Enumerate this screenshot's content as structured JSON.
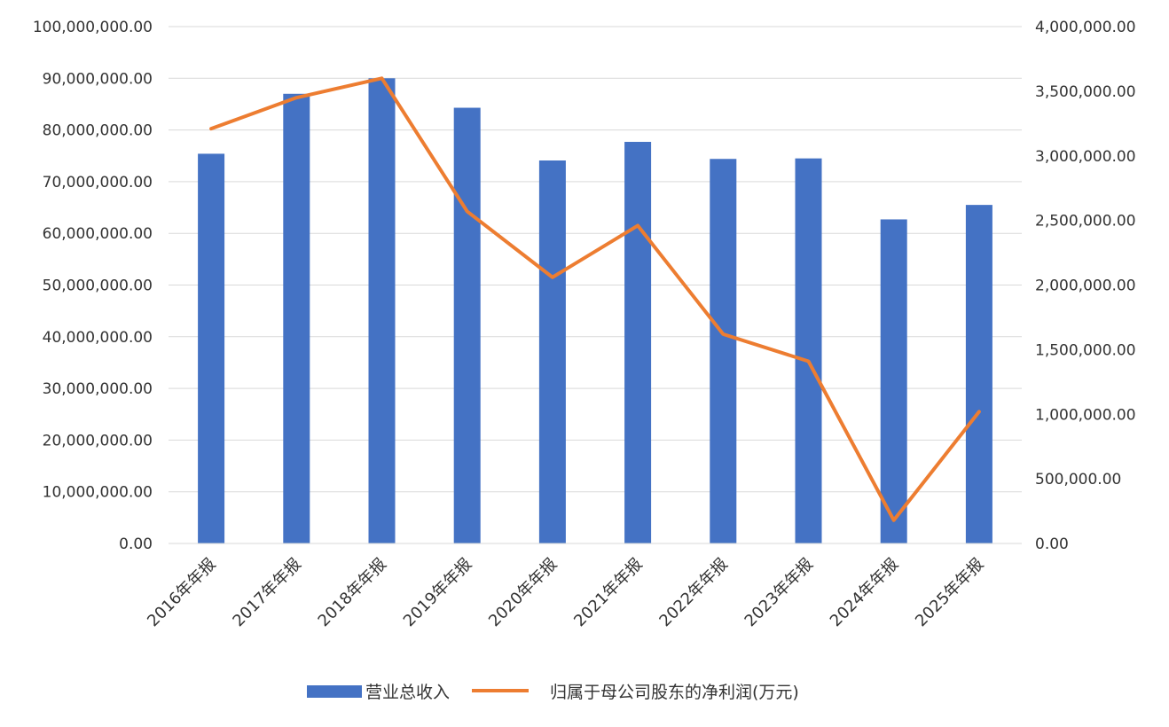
{
  "chart_data": {
    "type": "bar",
    "categories": [
      "2016年年报",
      "2017年年报",
      "2018年年报",
      "2019年年报",
      "2020年年报",
      "2021年年报",
      "2022年年报",
      "2023年年报",
      "2024年年报",
      "2025年年报"
    ],
    "series": [
      {
        "name": "营业总收入",
        "type": "bar",
        "axis": "left",
        "color": "#4472C4",
        "values": [
          75400000,
          87000000,
          90000000,
          84300000,
          74100000,
          77700000,
          74400000,
          74500000,
          62700000,
          65500000
        ]
      },
      {
        "name": "归属于母公司股东的净利润(万元)",
        "type": "line",
        "axis": "right",
        "color": "#ED7D31",
        "values": [
          3210000,
          3450000,
          3600000,
          2570000,
          2060000,
          2460000,
          1620000,
          1410000,
          180000,
          1020000
        ]
      }
    ],
    "y_left": {
      "min": 0,
      "max": 100000000,
      "ticks": [
        "0.00",
        "10,000,000.00",
        "20,000,000.00",
        "30,000,000.00",
        "40,000,000.00",
        "50,000,000.00",
        "60,000,000.00",
        "70,000,000.00",
        "80,000,000.00",
        "90,000,000.00",
        "100,000,000.00"
      ]
    },
    "y_right": {
      "min": 0,
      "max": 4000000,
      "ticks": [
        "0.00",
        "500,000.00",
        "1,000,000.00",
        "1,500,000.00",
        "2,000,000.00",
        "2,500,000.00",
        "3,000,000.00",
        "3,500,000.00",
        "4,000,000.00"
      ]
    },
    "grid": true,
    "legend": "bottom"
  }
}
